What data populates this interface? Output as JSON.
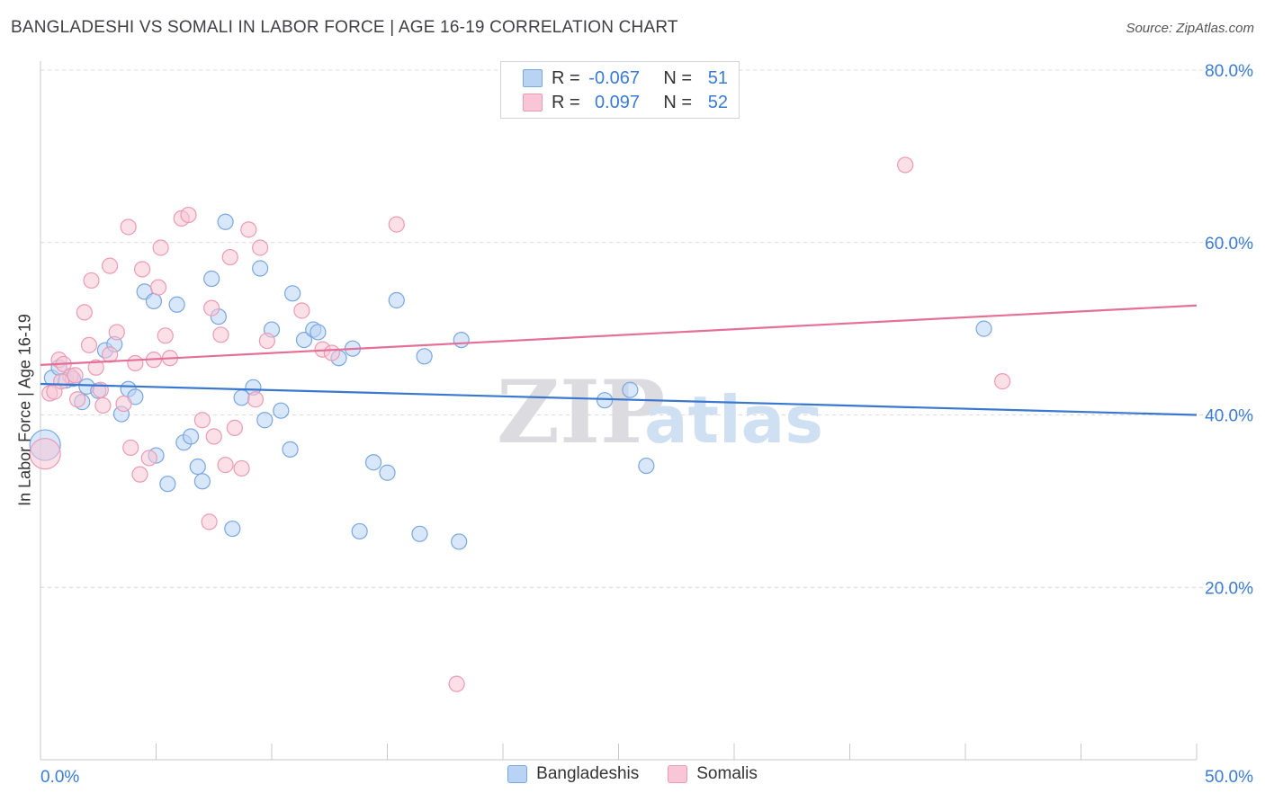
{
  "title": "BANGLADESHI VS SOMALI IN LABOR FORCE | AGE 16-19 CORRELATION CHART",
  "source": "Source: ZipAtlas.com",
  "watermark": {
    "zip": "ZIP",
    "atlas": "atlas"
  },
  "legend_top": [
    {
      "r_label": "R =",
      "r_value": "-0.067",
      "n_label": "N =",
      "n_value": "51"
    },
    {
      "r_label": "R =",
      "r_value": "0.097",
      "n_label": "N =",
      "n_value": "52"
    }
  ],
  "colors": {
    "blue_fill": "#b9d3f5",
    "blue_stroke": "#7aa7e0",
    "blue_line": "#3a78cf",
    "pink_fill": "#f8c6d6",
    "pink_stroke": "#ec9bb5",
    "pink_line": "#e4709a",
    "tick_text": "#3a7bd5",
    "grid": "#d9d9de"
  },
  "chart_data": {
    "type": "scatter",
    "title": "BANGLADESHI VS SOMALI IN LABOR FORCE | AGE 16-19 CORRELATION CHART",
    "xlabel": "",
    "ylabel": "In Labor Force | Age 16-19",
    "xlim": [
      0,
      50
    ],
    "ylim": [
      0,
      80
    ],
    "x_tick_labels": [
      "0.0%",
      "50.0%"
    ],
    "y_ticks": [
      20,
      40,
      60,
      80
    ],
    "y_tick_labels": [
      "20.0%",
      "40.0%",
      "60.0%",
      "80.0%"
    ],
    "legend_position": "bottom-center",
    "series": [
      {
        "name": "Bangladeshis",
        "color": "#3a78cf",
        "r": -0.067,
        "n": 51,
        "trend": {
          "x": [
            0,
            50
          ],
          "y": [
            43.6,
            40.0
          ]
        },
        "points": [
          [
            0.2,
            36.5
          ],
          [
            0.5,
            44.3
          ],
          [
            0.8,
            45.5
          ],
          [
            1.1,
            44.0
          ],
          [
            1.4,
            44.2
          ],
          [
            1.8,
            41.5
          ],
          [
            2.0,
            43.3
          ],
          [
            2.5,
            42.8
          ],
          [
            2.8,
            47.5
          ],
          [
            3.2,
            48.2
          ],
          [
            3.5,
            40.1
          ],
          [
            3.8,
            43.0
          ],
          [
            4.1,
            42.1
          ],
          [
            4.5,
            54.3
          ],
          [
            4.9,
            53.2
          ],
          [
            5.0,
            35.3
          ],
          [
            5.5,
            32.0
          ],
          [
            5.9,
            52.8
          ],
          [
            6.2,
            36.8
          ],
          [
            6.5,
            37.5
          ],
          [
            6.8,
            34.0
          ],
          [
            7.0,
            32.3
          ],
          [
            7.4,
            55.8
          ],
          [
            7.7,
            51.4
          ],
          [
            8.0,
            62.4
          ],
          [
            8.3,
            26.8
          ],
          [
            8.7,
            42.0
          ],
          [
            9.2,
            43.2
          ],
          [
            9.5,
            57.0
          ],
          [
            9.7,
            39.4
          ],
          [
            10.0,
            49.9
          ],
          [
            10.4,
            40.5
          ],
          [
            10.8,
            36.0
          ],
          [
            10.9,
            54.1
          ],
          [
            11.4,
            48.7
          ],
          [
            11.8,
            49.9
          ],
          [
            12.0,
            49.6
          ],
          [
            12.9,
            46.6
          ],
          [
            13.5,
            47.7
          ],
          [
            13.8,
            26.5
          ],
          [
            14.4,
            34.5
          ],
          [
            15.0,
            33.3
          ],
          [
            15.4,
            53.3
          ],
          [
            16.4,
            26.2
          ],
          [
            16.6,
            46.8
          ],
          [
            18.1,
            25.3
          ],
          [
            18.2,
            48.7
          ],
          [
            24.4,
            41.7
          ],
          [
            25.5,
            42.9
          ],
          [
            26.2,
            34.1
          ],
          [
            40.8,
            50.0
          ]
        ]
      },
      {
        "name": "Somalis",
        "color": "#e4709a",
        "r": 0.097,
        "n": 52,
        "trend": {
          "x": [
            0,
            50
          ],
          "y": [
            45.8,
            52.7
          ]
        },
        "points": [
          [
            0.2,
            35.5
          ],
          [
            0.4,
            42.5
          ],
          [
            0.6,
            42.7
          ],
          [
            0.8,
            46.4
          ],
          [
            1.0,
            45.9
          ],
          [
            1.3,
            44.5
          ],
          [
            1.6,
            41.8
          ],
          [
            1.9,
            51.9
          ],
          [
            2.1,
            48.1
          ],
          [
            2.2,
            55.6
          ],
          [
            2.4,
            45.5
          ],
          [
            2.6,
            42.9
          ],
          [
            3.0,
            47.0
          ],
          [
            3.0,
            57.3
          ],
          [
            3.3,
            49.6
          ],
          [
            3.6,
            41.3
          ],
          [
            3.8,
            61.8
          ],
          [
            3.9,
            36.2
          ],
          [
            4.1,
            46.0
          ],
          [
            4.3,
            33.1
          ],
          [
            4.4,
            56.9
          ],
          [
            4.7,
            35.0
          ],
          [
            4.9,
            46.4
          ],
          [
            5.1,
            54.8
          ],
          [
            5.2,
            59.4
          ],
          [
            5.4,
            49.2
          ],
          [
            5.6,
            46.6
          ],
          [
            6.1,
            62.8
          ],
          [
            6.4,
            63.2
          ],
          [
            7.0,
            39.4
          ],
          [
            7.3,
            27.6
          ],
          [
            7.4,
            52.4
          ],
          [
            7.5,
            37.5
          ],
          [
            7.8,
            49.3
          ],
          [
            8.0,
            34.2
          ],
          [
            8.2,
            58.3
          ],
          [
            8.4,
            38.5
          ],
          [
            8.7,
            33.8
          ],
          [
            9.0,
            61.5
          ],
          [
            9.3,
            41.8
          ],
          [
            9.5,
            59.4
          ],
          [
            9.8,
            48.6
          ],
          [
            11.3,
            52.1
          ],
          [
            12.2,
            47.6
          ],
          [
            12.6,
            47.2
          ],
          [
            15.4,
            62.1
          ],
          [
            18.0,
            8.8
          ],
          [
            37.4,
            69.0
          ],
          [
            41.6,
            43.9
          ],
          [
            0.9,
            43.9
          ],
          [
            1.5,
            44.6
          ],
          [
            2.7,
            41.1
          ]
        ]
      }
    ]
  }
}
